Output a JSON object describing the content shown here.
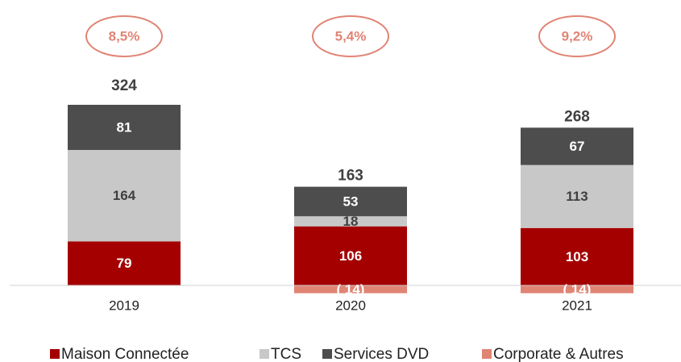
{
  "chart_data": {
    "type": "stacked_bar",
    "categories": [
      "2019",
      "2020",
      "2021"
    ],
    "series": [
      {
        "name": "Maison Connectée",
        "color": "#a50000",
        "values": [
          79,
          106,
          103
        ]
      },
      {
        "name": "TCS",
        "color": "#c8c8c8",
        "values": [
          164,
          18,
          113
        ]
      },
      {
        "name": "Services DVD",
        "color": "#4d4d4d",
        "values": [
          81,
          53,
          67
        ]
      },
      {
        "name": "Corporate & Autres",
        "color": "#e08474",
        "values": [
          0,
          -14,
          -14
        ],
        "value_labels": [
          null,
          "( 14)",
          "( 14)"
        ]
      }
    ],
    "totals": [
      324,
      163,
      268
    ],
    "margins": [
      "8,5%",
      "5,4%",
      "9,2%"
    ]
  }
}
